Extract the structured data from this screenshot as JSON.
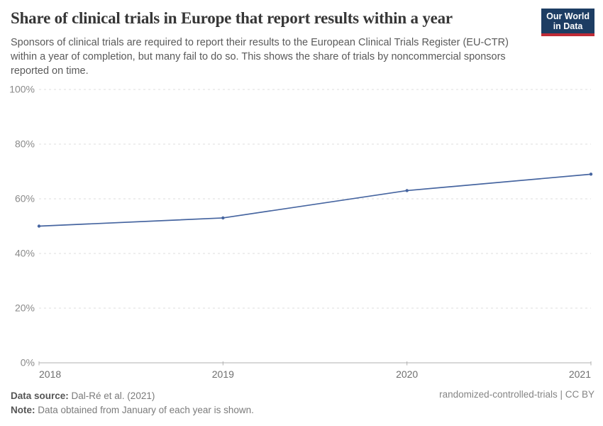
{
  "header": {
    "title": "Share of clinical trials in Europe that report results within a year",
    "subtitle_lines": [
      "Sponsors of clinical trials are required to report their results to the European Clinical Trials Register (EU-CTR)",
      "within a year of completion, but many fail to do so. This shows the share of trials by noncommercial sponsors",
      "reported on time."
    ]
  },
  "logo": {
    "line1": "Our World",
    "line2": "in Data",
    "bg_color": "#1d3d63",
    "accent_color": "#bf2b36"
  },
  "chart_data": {
    "type": "line",
    "title": "Share of clinical trials in Europe that report results within a year",
    "x": [
      "2018",
      "2019",
      "2020",
      "2021"
    ],
    "values": [
      50,
      53,
      63,
      69
    ],
    "unit": "%",
    "ylim": [
      0,
      100
    ],
    "yticks": [
      0,
      20,
      40,
      60,
      80,
      100
    ],
    "xlabel": "",
    "ylabel": "",
    "grid": "horizontal-dashed",
    "legend": "none",
    "line_color": "#4665a0",
    "grid_color": "#dcdcdc",
    "axis_color": "#b0b0b0"
  },
  "footer": {
    "datasource_label": "Data source:",
    "datasource_value": " Dal-Ré et al. (2021)",
    "note_label": "Note:",
    "note_value": " Data obtained from January of each year is shown.",
    "right_text": "randomized-controlled-trials | CC BY"
  }
}
